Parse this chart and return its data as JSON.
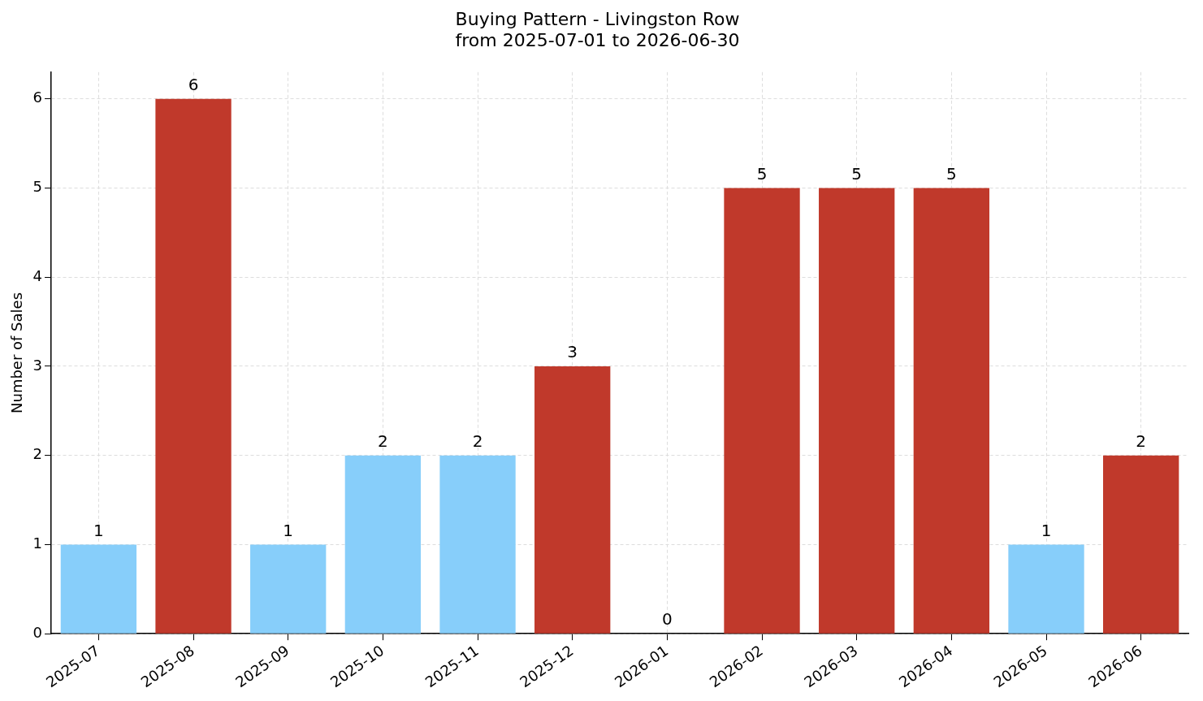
{
  "chart_data": {
    "type": "bar",
    "title": "Buying Pattern - Livingston Row",
    "subtitle": "from 2025-07-01 to 2026-06-30",
    "ylabel": "Number of Sales",
    "categories": [
      "2025-07",
      "2025-08",
      "2025-09",
      "2025-10",
      "2025-11",
      "2025-12",
      "2026-01",
      "2026-02",
      "2026-03",
      "2026-04",
      "2026-05",
      "2026-06"
    ],
    "values": [
      1,
      6,
      1,
      2,
      2,
      3,
      0,
      5,
      5,
      5,
      1,
      2
    ],
    "colors": [
      "#87cefa",
      "#c0392b",
      "#87cefa",
      "#87cefa",
      "#87cefa",
      "#c0392b",
      "#c0392b",
      "#c0392b",
      "#c0392b",
      "#c0392b",
      "#87cefa",
      "#c0392b"
    ],
    "ylim": [
      0,
      6.3
    ],
    "yticks": [
      0,
      1,
      2,
      3,
      4,
      5,
      6
    ],
    "grid": true,
    "data_labels": true,
    "legend": false
  }
}
